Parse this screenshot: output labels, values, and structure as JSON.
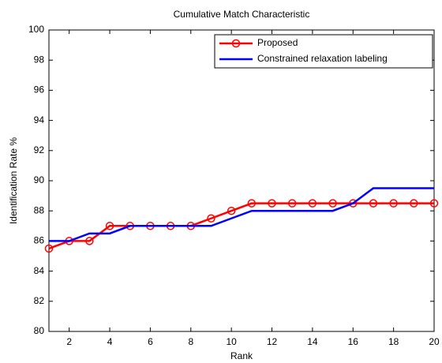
{
  "chart_data": {
    "type": "line",
    "title": "Cumulative Match Characteristic",
    "x_label": "Rank",
    "y_label": "Identification Rate %",
    "x": [
      1,
      2,
      3,
      4,
      5,
      6,
      7,
      8,
      9,
      10,
      11,
      12,
      13,
      14,
      15,
      16,
      17,
      18,
      19,
      20
    ],
    "series": [
      {
        "name": "Proposed",
        "color": "#ff0000",
        "marker": "circle",
        "values": [
          85.5,
          86,
          86,
          87,
          87,
          87,
          87,
          87,
          87.5,
          88,
          88.5,
          88.5,
          88.5,
          88.5,
          88.5,
          88.5,
          88.5,
          88.5,
          88.5,
          88.5
        ]
      },
      {
        "name": "Constrained relaxation labeling",
        "color": "#0000ff",
        "values": [
          86,
          86,
          86.5,
          86.5,
          87,
          87,
          87,
          87,
          87,
          87.5,
          88,
          88,
          88,
          88,
          88,
          88.5,
          89.5,
          89.5,
          89.5,
          89.5
        ]
      }
    ],
    "xlim": [
      1,
      20
    ],
    "xticks": [
      2,
      4,
      6,
      8,
      10,
      12,
      14,
      16,
      18,
      20
    ],
    "ylim": [
      80,
      100
    ],
    "yticks": [
      80,
      82,
      84,
      86,
      88,
      90,
      92,
      94,
      96,
      98,
      100
    ],
    "grid": false,
    "legend": "upper right"
  }
}
